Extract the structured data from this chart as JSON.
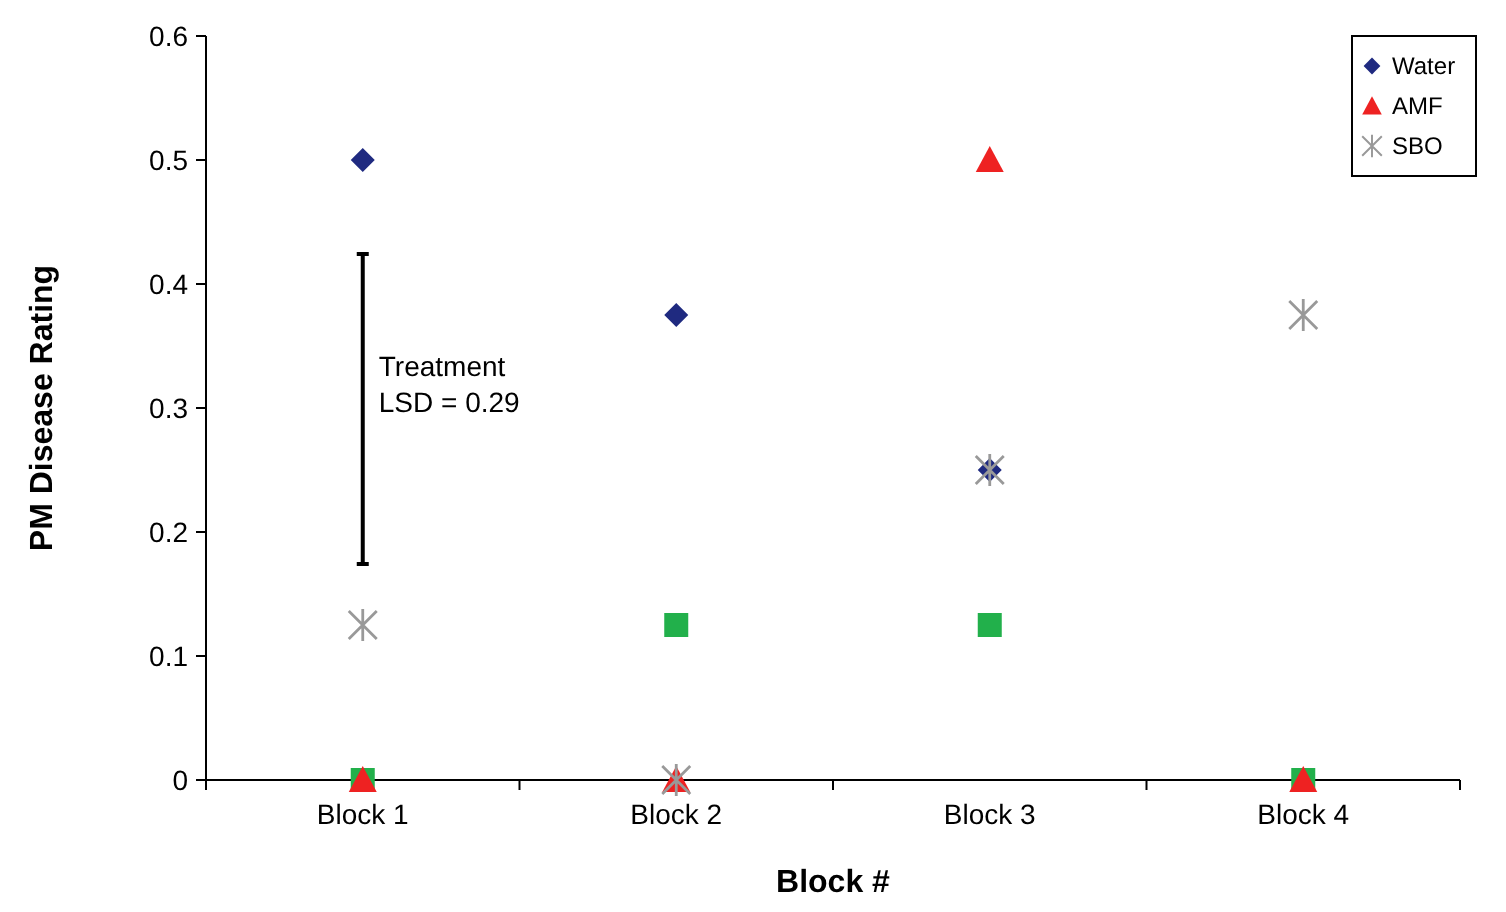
{
  "chart_data": {
    "type": "scatter",
    "xlabel": "Block #",
    "ylabel": "PM Disease Rating",
    "categories": [
      "Block 1",
      "Block 2",
      "Block 3",
      "Block 4"
    ],
    "series": [
      {
        "name": "Water",
        "color": "#1f2a80",
        "marker": "diamond",
        "values": [
          0.5,
          0.375,
          0.25,
          null
        ]
      },
      {
        "color": "#22b04b",
        "marker": "square",
        "values": [
          0,
          0.125,
          0.125,
          0
        ]
      },
      {
        "name": "AMF",
        "color": "#ee2222",
        "marker": "triangle",
        "values": [
          0,
          0,
          0.5,
          0
        ]
      },
      {
        "name": "SBO",
        "color": "#999999",
        "marker": "cross",
        "values": [
          0.125,
          0,
          0.25,
          0.375
        ]
      }
    ],
    "ylim": [
      0,
      0.6
    ],
    "yticks": [
      0,
      0.1,
      0.2,
      0.3,
      0.4,
      0.5,
      0.6
    ],
    "grid": false,
    "legend": "top right",
    "annotations": [
      "Treatment\nLSD = 0.29"
    ]
  }
}
